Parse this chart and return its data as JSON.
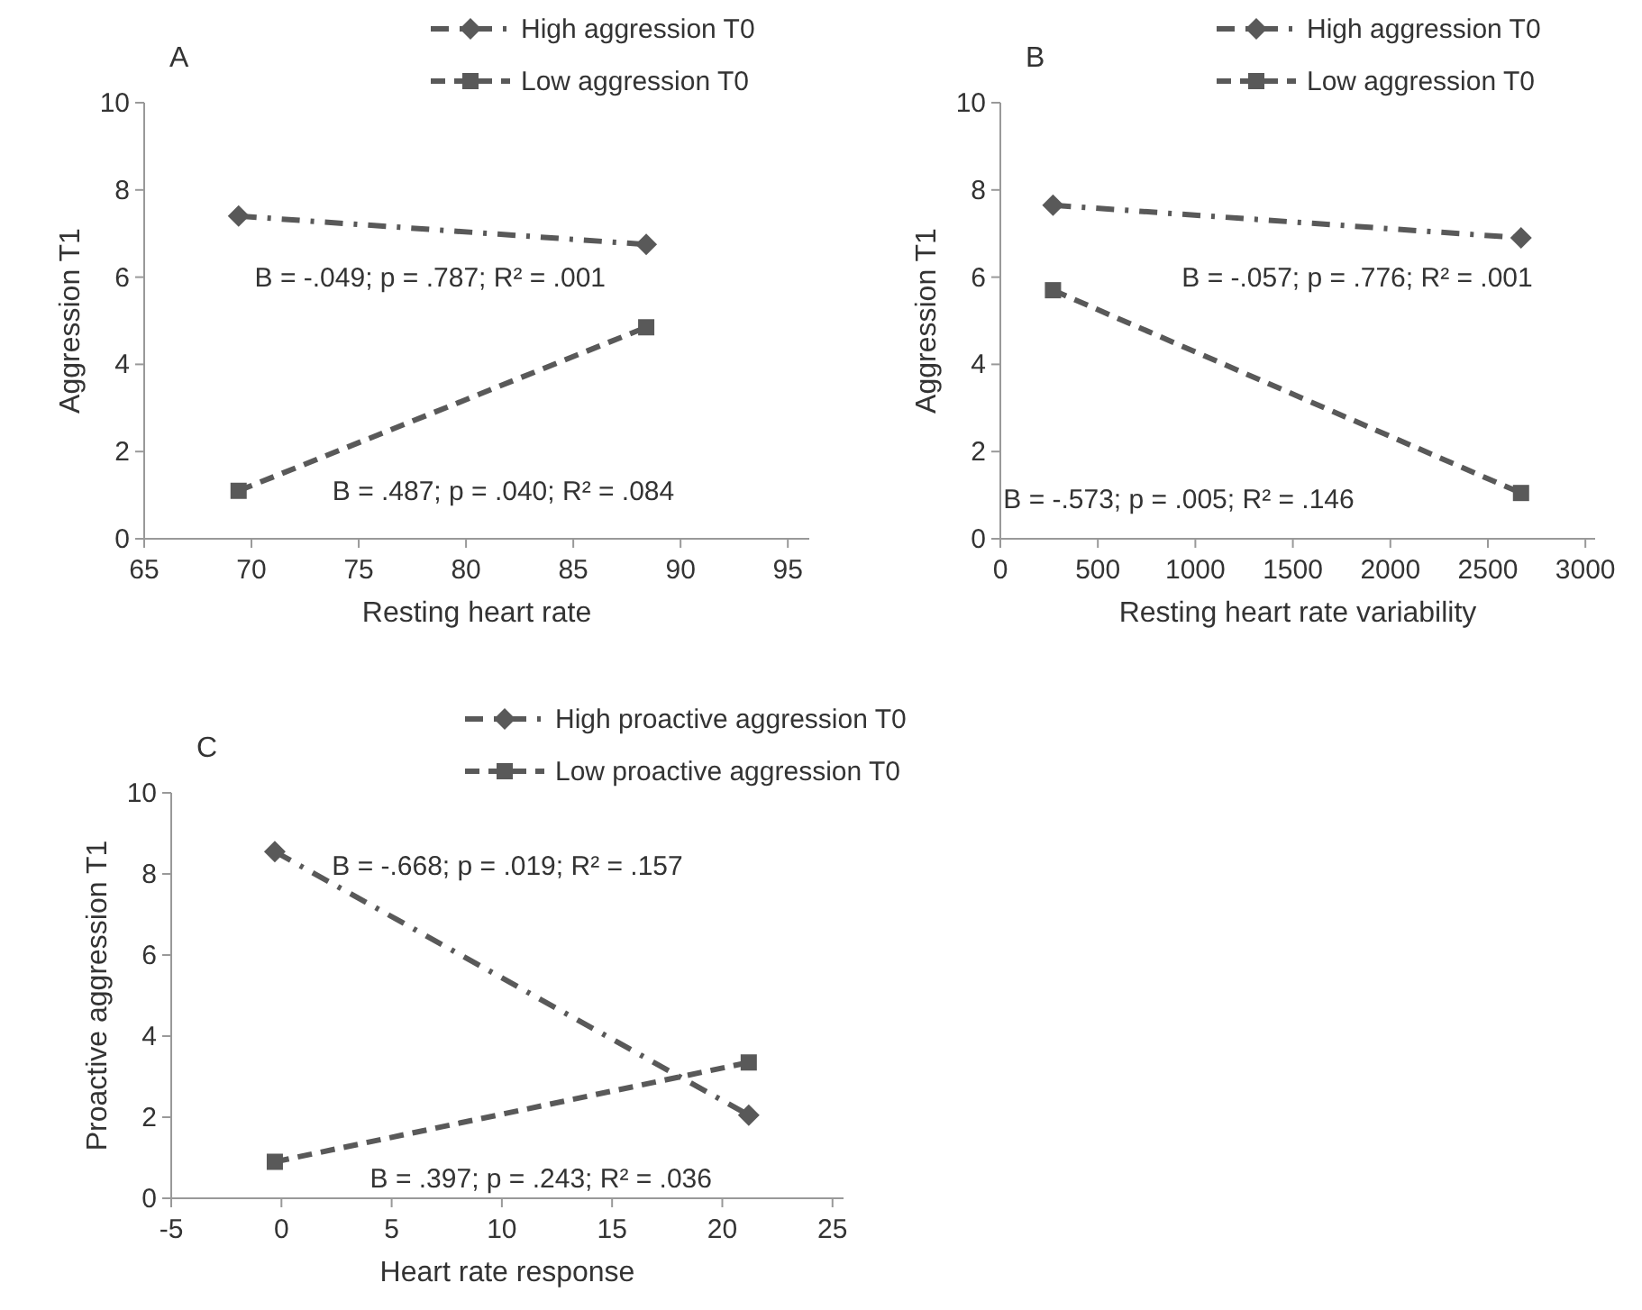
{
  "chart_data": [
    {
      "type": "line",
      "title": "A",
      "xlabel": "Resting heart rate",
      "ylabel": "Aggression T1",
      "xlim": [
        65,
        96
      ],
      "xticks": [
        65,
        70,
        75,
        80,
        85,
        90,
        95
      ],
      "ylim": [
        0,
        10
      ],
      "yticks": [
        0,
        2,
        4,
        6,
        8,
        10
      ],
      "grid": false,
      "legend": "top right",
      "series": [
        {
          "name": "High aggression T0",
          "color": "#595959",
          "x": [
            69.4,
            88.4
          ],
          "values": [
            7.4,
            6.75
          ],
          "marker": "diamond",
          "line_style": "dashdot"
        },
        {
          "name": "Low aggression T0",
          "color": "#595959",
          "x": [
            69.4,
            88.4
          ],
          "values": [
            1.1,
            4.85
          ],
          "marker": "square",
          "line_style": "dashed"
        }
      ],
      "annotations": [
        "B = -.049; p = .787; R² = .001",
        "B = .487; p = .040; R² = .084"
      ]
    },
    {
      "type": "line",
      "title": "B",
      "xlabel": "Resting heart rate variability",
      "ylabel": "Aggression T1",
      "xlim": [
        0,
        3050
      ],
      "xticks": [
        0,
        500,
        1000,
        1500,
        2000,
        2500,
        3000
      ],
      "ylim": [
        0,
        10
      ],
      "yticks": [
        0,
        2,
        4,
        6,
        8,
        10
      ],
      "grid": false,
      "legend": "top right",
      "series": [
        {
          "name": "High aggression T0",
          "color": "#595959",
          "x": [
            270,
            2670
          ],
          "values": [
            7.65,
            6.9
          ],
          "marker": "diamond",
          "line_style": "dashdot"
        },
        {
          "name": "Low aggression T0",
          "color": "#595959",
          "x": [
            270,
            2670
          ],
          "values": [
            5.7,
            1.05
          ],
          "marker": "square",
          "line_style": "dashed"
        }
      ],
      "annotations": [
        "B = -.057; p = .776; R² = .001",
        "B = -.573; p = .005; R² = .146"
      ]
    },
    {
      "type": "line",
      "title": "C",
      "xlabel": "Heart rate response",
      "ylabel": "Proactive aggression T1",
      "xlim": [
        -5,
        25.5
      ],
      "xticks": [
        -5,
        0,
        5,
        10,
        15,
        20,
        25
      ],
      "ylim": [
        0,
        10
      ],
      "yticks": [
        0,
        2,
        4,
        6,
        8,
        10
      ],
      "grid": false,
      "legend": "top right",
      "series": [
        {
          "name": "High proactive aggression T0",
          "color": "#595959",
          "x": [
            -0.3,
            21.2
          ],
          "values": [
            8.55,
            2.05
          ],
          "marker": "diamond",
          "line_style": "dashdot"
        },
        {
          "name": "Low proactive aggression T0",
          "color": "#595959",
          "x": [
            -0.3,
            21.2
          ],
          "values": [
            0.9,
            3.35
          ],
          "marker": "square",
          "line_style": "dashed"
        }
      ],
      "annotations": [
        "B = -.668; p = .019; R² = .157",
        "B = .397; p = .243; R² = .036"
      ]
    }
  ]
}
